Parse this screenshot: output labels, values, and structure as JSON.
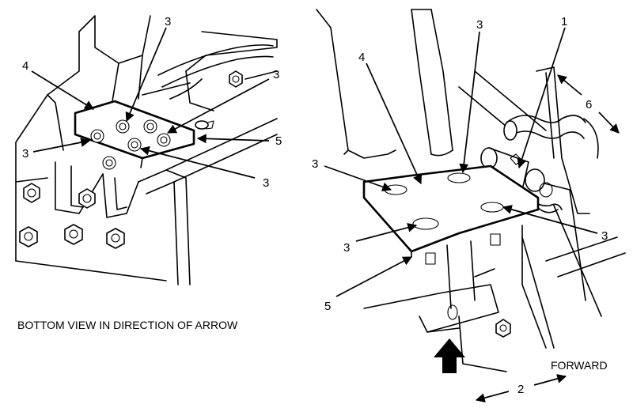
{
  "captions": {
    "bottom_view": "BOTTOM VIEW IN DIRECTION OF ARROW",
    "forward": "FORWARD"
  },
  "callouts": {
    "c1": "1",
    "c2": "2",
    "c3": "3",
    "c4": "4",
    "c5": "5",
    "c6": "6"
  }
}
